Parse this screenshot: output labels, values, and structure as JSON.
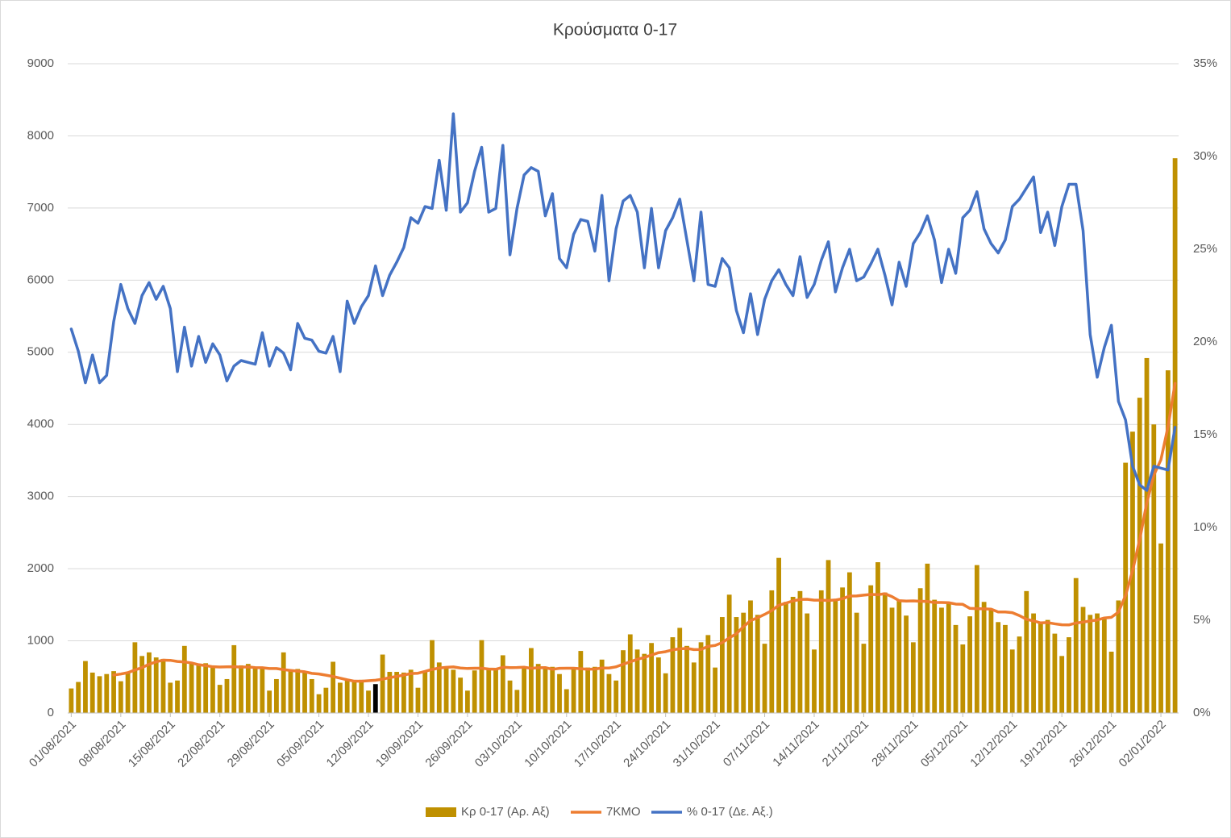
{
  "chart_data": {
    "type": "bar_line",
    "title": "Κρούσματα 0-17",
    "categories": [
      "01/08/2021",
      null,
      null,
      null,
      null,
      null,
      null,
      "08/08/2021",
      null,
      null,
      null,
      null,
      null,
      null,
      "15/08/2021",
      null,
      null,
      null,
      null,
      null,
      null,
      "22/08/2021",
      null,
      null,
      null,
      null,
      null,
      null,
      "29/08/2021",
      null,
      null,
      null,
      null,
      null,
      null,
      "05/09/2021",
      null,
      null,
      null,
      null,
      null,
      null,
      "12/09/2021",
      null,
      null,
      null,
      null,
      null,
      null,
      "19/09/2021",
      null,
      null,
      null,
      null,
      null,
      null,
      "26/09/2021",
      null,
      null,
      null,
      null,
      null,
      null,
      "03/10/2021",
      null,
      null,
      null,
      null,
      null,
      null,
      "10/10/2021",
      null,
      null,
      null,
      null,
      null,
      null,
      "17/10/2021",
      null,
      null,
      null,
      null,
      null,
      null,
      "24/10/2021",
      null,
      null,
      null,
      null,
      null,
      null,
      "31/10/2021",
      null,
      null,
      null,
      null,
      null,
      null,
      "07/11/2021",
      null,
      null,
      null,
      null,
      null,
      null,
      "14/11/2021",
      null,
      null,
      null,
      null,
      null,
      null,
      "21/11/2021",
      null,
      null,
      null,
      null,
      null,
      null,
      "28/11/2021",
      null,
      null,
      null,
      null,
      null,
      null,
      "05/12/2021",
      null,
      null,
      null,
      null,
      null,
      null,
      "12/12/2021",
      null,
      null,
      null,
      null,
      null,
      null,
      "19/12/2021",
      null,
      null,
      null,
      null,
      null,
      null,
      "26/12/2021",
      null,
      null,
      null,
      null,
      null,
      null,
      "02/01/2022",
      null,
      null
    ],
    "series": [
      {
        "name": "Κρ 0-17 (Αρ. Αξ)",
        "kind": "bar",
        "color": "#bf9000",
        "highlight": {
          "index": 43,
          "color": "#000000"
        },
        "values": [
          340,
          430,
          720,
          560,
          510,
          540,
          580,
          440,
          560,
          980,
          790,
          840,
          770,
          750,
          420,
          450,
          930,
          700,
          660,
          690,
          640,
          390,
          470,
          940,
          660,
          680,
          620,
          630,
          310,
          470,
          840,
          580,
          610,
          560,
          470,
          260,
          350,
          710,
          420,
          450,
          430,
          460,
          310,
          400,
          810,
          570,
          570,
          560,
          600,
          350,
          570,
          1010,
          700,
          640,
          600,
          490,
          310,
          590,
          1010,
          620,
          620,
          800,
          450,
          320,
          620,
          900,
          680,
          630,
          640,
          540,
          330,
          620,
          860,
          630,
          640,
          740,
          540,
          450,
          870,
          1090,
          880,
          820,
          970,
          770,
          550,
          1050,
          1180,
          930,
          700,
          980,
          1080,
          630,
          1330,
          1640,
          1330,
          1390,
          1560,
          1360,
          960,
          1700,
          2150,
          1540,
          1610,
          1690,
          1380,
          880,
          1700,
          2120,
          1580,
          1740,
          1950,
          1390,
          960,
          1770,
          2090,
          1670,
          1460,
          1560,
          1350,
          980,
          1730,
          2070,
          1570,
          1460,
          1540,
          1220,
          950,
          1340,
          2050,
          1540,
          1440,
          1260,
          1220,
          880,
          1060,
          1690,
          1380,
          1250,
          1290,
          1100,
          790,
          1050,
          1870,
          1470,
          1360,
          1380,
          1300,
          850,
          1560,
          3470,
          3900,
          4370,
          4920,
          4000,
          2350,
          4750,
          7690
        ]
      },
      {
        "name": "7ΚΜΟ",
        "kind": "line",
        "color": "#ed7d31",
        "values": [
          null,
          null,
          null,
          null,
          null,
          null,
          526,
          540,
          559,
          596,
          629,
          676,
          709,
          733,
          730,
          714,
          707,
          694,
          669,
          657,
          641,
          637,
          640,
          641,
          636,
          639,
          629,
          627,
          616,
          616,
          601,
          590,
          580,
          571,
          549,
          541,
          524,
          506,
          483,
          460,
          441,
          440,
          447,
          454,
          469,
          490,
          507,
          526,
          546,
          551,
          576,
          604,
          623,
          633,
          639,
          623,
          617,
          620,
          620,
          609,
          606,
          634,
          629,
          630,
          634,
          619,
          627,
          629,
          606,
          619,
          620,
          620,
          614,
          607,
          609,
          623,
          623,
          640,
          676,
          709,
          744,
          770,
          803,
          836,
          850,
          876,
          889,
          896,
          879,
          880,
          924,
          936,
          976,
          1041,
          1099,
          1197,
          1280,
          1320,
          1367,
          1420,
          1493,
          1523,
          1554,
          1573,
          1576,
          1564,
          1564,
          1560,
          1566,
          1584,
          1621,
          1623,
          1634,
          1644,
          1640,
          1653,
          1613,
          1557,
          1551,
          1554,
          1549,
          1546,
          1531,
          1531,
          1529,
          1510,
          1506,
          1450,
          1447,
          1443,
          1440,
          1400,
          1400,
          1390,
          1350,
          1299,
          1276,
          1249,
          1253,
          1236,
          1223,
          1221,
          1247,
          1260,
          1276,
          1289,
          1317,
          1326,
          1399,
          1627,
          1974,
          2404,
          2910,
          3296,
          3510,
          3966,
          4569
        ]
      },
      {
        "name": "% 0-17 (Δε. Αξ.)",
        "kind": "line",
        "axis": "y2",
        "color": "#4472c4",
        "values": [
          20.7,
          19.5,
          17.8,
          19.3,
          17.8,
          18.2,
          21.1,
          23.1,
          21.8,
          21.0,
          22.5,
          23.2,
          22.3,
          23.0,
          21.8,
          18.4,
          20.8,
          18.7,
          20.3,
          18.9,
          19.9,
          19.3,
          17.9,
          18.7,
          19.0,
          18.9,
          18.8,
          20.5,
          18.7,
          19.7,
          19.4,
          18.5,
          21.0,
          20.2,
          20.1,
          19.5,
          19.4,
          20.3,
          18.4,
          22.2,
          21.0,
          21.9,
          22.5,
          24.1,
          22.5,
          23.6,
          24.3,
          25.1,
          26.7,
          26.4,
          27.3,
          27.2,
          29.8,
          27.1,
          32.3,
          27.0,
          27.5,
          29.2,
          30.5,
          27.0,
          27.2,
          30.6,
          24.7,
          27.2,
          29.0,
          29.4,
          29.2,
          26.8,
          28.0,
          24.5,
          24.0,
          25.8,
          26.6,
          26.5,
          24.9,
          27.9,
          23.3,
          26.1,
          27.6,
          27.9,
          27.0,
          24.0,
          27.2,
          24.0,
          26.0,
          26.7,
          27.7,
          25.5,
          23.3,
          27.0,
          23.1,
          23.0,
          24.5,
          24.0,
          21.7,
          20.5,
          22.6,
          20.4,
          22.3,
          23.3,
          23.9,
          23.1,
          22.5,
          24.6,
          22.4,
          23.1,
          24.4,
          25.4,
          22.7,
          24.0,
          25.0,
          23.3,
          23.5,
          24.2,
          25.0,
          23.6,
          22.0,
          24.3,
          23.0,
          25.3,
          25.9,
          26.8,
          25.5,
          23.2,
          25.0,
          23.7,
          26.7,
          27.1,
          28.1,
          26.1,
          25.3,
          24.8,
          25.5,
          27.3,
          27.7,
          28.3,
          28.9,
          25.9,
          27.0,
          25.2,
          27.3,
          28.5,
          28.5,
          26.0,
          20.4,
          18.1,
          19.7,
          20.9,
          16.8,
          15.8,
          13.3,
          12.3,
          12.0,
          13.3,
          13.2,
          13.1,
          15.4
        ]
      }
    ],
    "ylim": [
      0,
      9000
    ],
    "yticks": [
      0,
      1000,
      2000,
      3000,
      4000,
      5000,
      6000,
      7000,
      8000,
      9000
    ],
    "y2lim": [
      0,
      35
    ],
    "y2ticks": [
      {
        "value": 0,
        "label": "0%"
      },
      {
        "value": 5,
        "label": "5%"
      },
      {
        "value": 10,
        "label": "10%"
      },
      {
        "value": 15,
        "label": "15%"
      },
      {
        "value": 20,
        "label": "20%"
      },
      {
        "value": 25,
        "label": "25%"
      },
      {
        "value": 30,
        "label": "30%"
      },
      {
        "value": 35,
        "label": "35%"
      }
    ],
    "grid": true,
    "legend": "bottom"
  }
}
